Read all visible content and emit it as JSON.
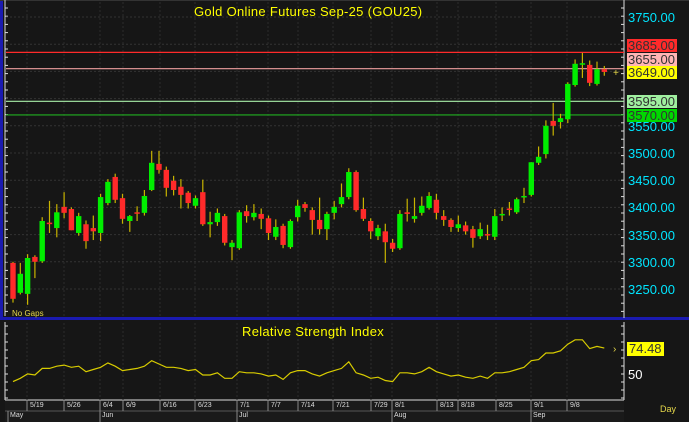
{
  "chart_data": [
    {
      "type": "candlestick",
      "title": "Gold Online Futures Sep-25 (GOU25)",
      "note": "No Gaps",
      "y_axis": {
        "ticks": [
          3750,
          3550,
          3500,
          3450,
          3400,
          3350,
          3300,
          3250
        ],
        "range": [
          3220,
          3770
        ],
        "position": "right"
      },
      "colors": {
        "up": "#00ee00",
        "down": "#ff2a2a",
        "wick": "#c8b400",
        "background": "#161616"
      },
      "ohlc": [
        [
          3298,
          3300,
          3225,
          3232
        ],
        [
          3243,
          3298,
          3240,
          3278
        ],
        [
          3241,
          3314,
          3221,
          3307
        ],
        [
          3309,
          3312,
          3270,
          3300
        ],
        [
          3301,
          3382,
          3298,
          3375
        ],
        [
          3372,
          3412,
          3353,
          3370
        ],
        [
          3362,
          3406,
          3345,
          3391
        ],
        [
          3401,
          3428,
          3380,
          3390
        ],
        [
          3397,
          3400,
          3358,
          3358
        ],
        [
          3353,
          3390,
          3348,
          3384
        ],
        [
          3369,
          3376,
          3324,
          3338
        ],
        [
          3362,
          3385,
          3340,
          3356
        ],
        [
          3353,
          3425,
          3338,
          3419
        ],
        [
          3408,
          3452,
          3404,
          3447
        ],
        [
          3456,
          3462,
          3408,
          3414
        ],
        [
          3417,
          3425,
          3370,
          3379
        ],
        [
          3375,
          3386,
          3355,
          3384
        ],
        [
          3391,
          3402,
          3375,
          3390
        ],
        [
          3390,
          3432,
          3385,
          3421
        ],
        [
          3432,
          3504,
          3430,
          3482
        ],
        [
          3480,
          3504,
          3462,
          3469
        ],
        [
          3469,
          3475,
          3420,
          3436
        ],
        [
          3449,
          3458,
          3422,
          3432
        ],
        [
          3438,
          3452,
          3398,
          3423
        ],
        [
          3427,
          3430,
          3398,
          3408
        ],
        [
          3403,
          3422,
          3398,
          3417
        ],
        [
          3428,
          3451,
          3366,
          3369
        ],
        [
          3369,
          3392,
          3345,
          3373
        ],
        [
          3373,
          3398,
          3366,
          3390
        ],
        [
          3384,
          3388,
          3330,
          3335
        ],
        [
          3327,
          3340,
          3303,
          3335
        ],
        [
          3325,
          3395,
          3322,
          3391
        ],
        [
          3393,
          3404,
          3372,
          3384
        ],
        [
          3382,
          3406,
          3376,
          3390
        ],
        [
          3388,
          3398,
          3360,
          3379
        ],
        [
          3380,
          3385,
          3340,
          3353
        ],
        [
          3346,
          3378,
          3340,
          3364
        ],
        [
          3366,
          3370,
          3325,
          3331
        ],
        [
          3327,
          3378,
          3324,
          3375
        ],
        [
          3382,
          3414,
          3374,
          3403
        ],
        [
          3406,
          3410,
          3392,
          3399
        ],
        [
          3395,
          3400,
          3350,
          3377
        ],
        [
          3377,
          3418,
          3350,
          3360
        ],
        [
          3360,
          3392,
          3340,
          3388
        ],
        [
          3390,
          3412,
          3378,
          3401
        ],
        [
          3406,
          3444,
          3400,
          3419
        ],
        [
          3419,
          3472,
          3415,
          3465
        ],
        [
          3465,
          3468,
          3392,
          3395
        ],
        [
          3397,
          3418,
          3375,
          3379
        ],
        [
          3375,
          3380,
          3342,
          3356
        ],
        [
          3347,
          3368,
          3340,
          3362
        ],
        [
          3356,
          3370,
          3298,
          3336
        ],
        [
          3335,
          3342,
          3318,
          3324
        ],
        [
          3325,
          3395,
          3322,
          3388
        ],
        [
          3391,
          3416,
          3374,
          3388
        ],
        [
          3379,
          3418,
          3372,
          3384
        ],
        [
          3390,
          3420,
          3385,
          3403
        ],
        [
          3399,
          3428,
          3396,
          3421
        ],
        [
          3414,
          3425,
          3378,
          3390
        ],
        [
          3384,
          3395,
          3366,
          3377
        ],
        [
          3377,
          3380,
          3355,
          3364
        ],
        [
          3362,
          3385,
          3355,
          3369
        ],
        [
          3367,
          3374,
          3350,
          3356
        ],
        [
          3360,
          3366,
          3326,
          3344
        ],
        [
          3347,
          3372,
          3342,
          3360
        ],
        [
          3351,
          3368,
          3340,
          3349
        ],
        [
          3346,
          3397,
          3340,
          3384
        ],
        [
          3386,
          3400,
          3375,
          3388
        ],
        [
          3398,
          3410,
          3385,
          3397
        ],
        [
          3391,
          3418,
          3388,
          3415
        ],
        [
          3420,
          3436,
          3408,
          3421
        ],
        [
          3423,
          3483,
          3420,
          3483
        ],
        [
          3482,
          3512,
          3478,
          3493
        ],
        [
          3498,
          3560,
          3490,
          3550
        ],
        [
          3559,
          3592,
          3532,
          3550
        ],
        [
          3557,
          3572,
          3545,
          3564
        ],
        [
          3562,
          3630,
          3555,
          3627
        ],
        [
          3625,
          3672,
          3622,
          3664
        ],
        [
          3664,
          3684,
          3638,
          3665
        ],
        [
          3662,
          3670,
          3623,
          3629
        ],
        [
          3627,
          3668,
          3624,
          3654
        ],
        [
          3654,
          3660,
          3642,
          3649
        ]
      ],
      "price_levels": [
        {
          "value": "3685.00",
          "price": 3685,
          "color": "#ff2a2a",
          "box": "#ff2a2a"
        },
        {
          "value": "3655.00",
          "price": 3655,
          "color": "#f0a0a0",
          "box": "#ffb4b4"
        },
        {
          "value": "3649.00",
          "price": 3649,
          "color": null,
          "box": "#ffff00"
        },
        {
          "value": "3595.00",
          "price": 3595,
          "color": "#a8f0a8",
          "box": "#a0f0a0"
        },
        {
          "value": "3570.00",
          "price": 3570,
          "color": "#20b020",
          "box": "#00d800"
        }
      ]
    },
    {
      "type": "line",
      "title": "Relative Strength Index",
      "color": "#d8cc00",
      "y_axis": {
        "ticks": [
          50
        ],
        "range": [
          35,
          90
        ]
      },
      "last_value": "74.48",
      "values": [
        44,
        47,
        51,
        50,
        56,
        56,
        58,
        59,
        57,
        58,
        53,
        55,
        57,
        61,
        58,
        54,
        55,
        56,
        58,
        63,
        60,
        57,
        57,
        56,
        54,
        55,
        50,
        50,
        52,
        47,
        47,
        53,
        52,
        52,
        51,
        49,
        50,
        46,
        52,
        54,
        54,
        51,
        49,
        52,
        54,
        56,
        62,
        52,
        50,
        47,
        48,
        45,
        44,
        52,
        52,
        51,
        53,
        57,
        53,
        51,
        49,
        50,
        48,
        47,
        49,
        47,
        52,
        52,
        53,
        55,
        57,
        63,
        64,
        70,
        70,
        72,
        78,
        82,
        82,
        74,
        76,
        74.48
      ]
    }
  ],
  "x_axis": {
    "dates": [
      "5/19",
      "5/26",
      "6/4",
      "6/9",
      "6/16",
      "6/23",
      "7/1",
      "7/7",
      "7/14",
      "7/21",
      "7/29",
      "8/1",
      "8/13",
      "8/18",
      "8/25",
      "9/1",
      "9/8"
    ],
    "months": [
      "May",
      "Jun",
      "Jul",
      "Aug",
      "Sep"
    ],
    "interval": "Day"
  }
}
